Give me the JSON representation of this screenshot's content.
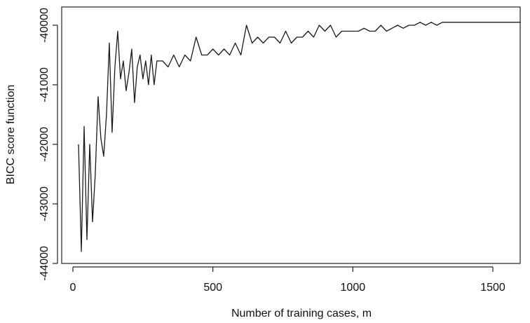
{
  "chart_data": {
    "type": "line",
    "xlabel": "Number of training cases, m",
    "ylabel": "BICC score function",
    "xlim": [
      -20,
      1640
    ],
    "ylim": [
      -44200,
      39750
    ],
    "x_ticks": [
      0,
      500,
      1000,
      1500
    ],
    "y_ticks": [
      -44000,
      -43000,
      -42000,
      -41000,
      -40000
    ],
    "y_tick_labels": [
      "-44000",
      "-43000",
      "-42000",
      "-41000",
      "-40000"
    ],
    "x_tick_labels": [
      "0",
      "500",
      "1000",
      "1500"
    ],
    "line_color": "#1a1a1a",
    "grid": false,
    "series": [
      {
        "x": [
          20,
          30,
          40,
          50,
          60,
          70,
          80,
          90,
          100,
          110,
          120,
          130,
          140,
          150,
          160,
          170,
          180,
          190,
          200,
          210,
          220,
          230,
          240,
          250,
          260,
          270,
          280,
          290,
          300,
          320,
          340,
          360,
          380,
          400,
          420,
          440,
          460,
          480,
          500,
          520,
          540,
          560,
          580,
          600,
          620,
          640,
          660,
          680,
          700,
          720,
          740,
          760,
          780,
          800,
          820,
          840,
          860,
          880,
          900,
          920,
          940,
          960,
          980,
          1000,
          1020,
          1040,
          1060,
          1080,
          1100,
          1120,
          1140,
          1160,
          1180,
          1200,
          1220,
          1240,
          1260,
          1280,
          1300,
          1320,
          1340,
          1360,
          1380,
          1400,
          1420,
          1440,
          1460,
          1480,
          1500,
          1520,
          1540,
          1560,
          1580,
          1600
        ],
        "values": [
          -42000,
          -43800,
          -41700,
          -43600,
          -42000,
          -43300,
          -42500,
          -41200,
          -41900,
          -42200,
          -41500,
          -40300,
          -41800,
          -40700,
          -40100,
          -40900,
          -40600,
          -41100,
          -40800,
          -40400,
          -41300,
          -40700,
          -40500,
          -40900,
          -40600,
          -41000,
          -40500,
          -41000,
          -40600,
          -40600,
          -40700,
          -40500,
          -40700,
          -40500,
          -40600,
          -40200,
          -40500,
          -40500,
          -40400,
          -40500,
          -40400,
          -40500,
          -40300,
          -40500,
          -40000,
          -40300,
          -40200,
          -40300,
          -40200,
          -40200,
          -40300,
          -40100,
          -40300,
          -40200,
          -40200,
          -40100,
          -40200,
          -40000,
          -40100,
          -40000,
          -40200,
          -40100,
          -40100,
          -40100,
          -40100,
          -40050,
          -40100,
          -40100,
          -40000,
          -40100,
          -40050,
          -40000,
          -40050,
          -40000,
          -40000,
          -39950,
          -40000,
          -39950,
          -40000,
          -39950,
          -39950,
          -39950,
          -39950,
          -39950,
          -39950,
          -39950,
          -39950,
          -39950,
          -39950,
          -39950,
          -39950,
          -39950,
          -39950,
          -39950
        ]
      }
    ]
  }
}
